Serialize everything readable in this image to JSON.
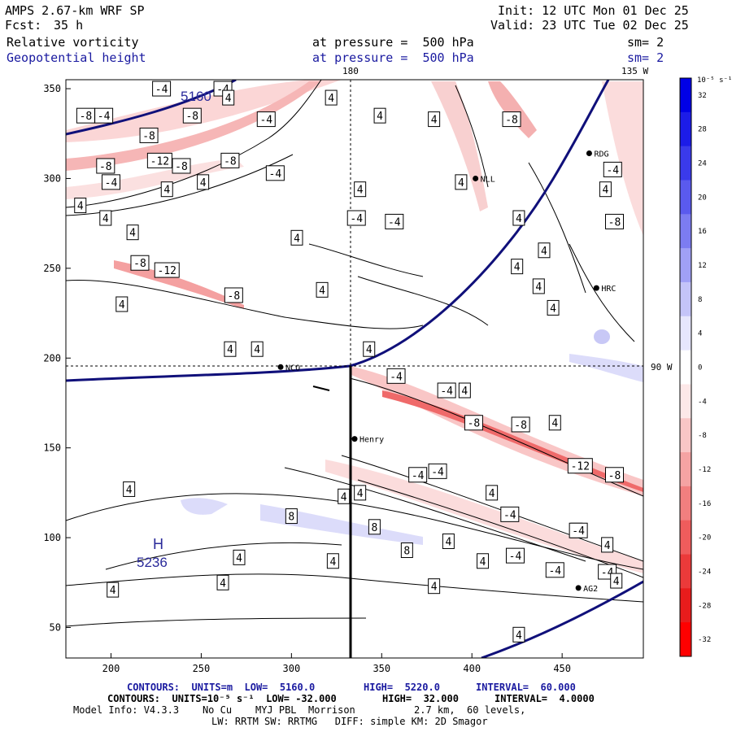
{
  "header": {
    "model": "AMPS 2.67-km WRF SP",
    "fcst_label": "Fcst:",
    "fcst_value": "35 h",
    "field1": "Relative vorticity",
    "field2": "Geopotential height",
    "pressure1": "at pressure =  500 hPa",
    "pressure2": "at pressure =  500 hPa",
    "init": "Init: 12 UTC Mon 01 Dec 25",
    "valid": "Valid: 23 UTC Tue 02 Dec 25",
    "sm1": "sm= 2",
    "sm2": "sm= 2"
  },
  "map": {
    "lon_180": "180",
    "lon_135w": "135 W",
    "lon_90w": "90 W",
    "high_label": "H",
    "high_value": "5236",
    "contour_5160": "5160",
    "stations": [
      "NCO",
      "Henry",
      "RDG",
      "NLL",
      "HRC",
      "AG2"
    ],
    "x_ticks": [
      "200",
      "250",
      "300",
      "350",
      "400",
      "450"
    ],
    "y_ticks": [
      "350",
      "300",
      "250",
      "200",
      "150",
      "100",
      "50"
    ],
    "contour_labels": {
      "neg4": "-4",
      "pos4": "4",
      "neg8": "-8",
      "pos8": "8",
      "neg12": "-12"
    }
  },
  "colorbar": {
    "unit": "10⁻⁵ s⁻¹",
    "ticks": [
      "32",
      "28",
      "24",
      "20",
      "16",
      "12",
      "8",
      "4",
      "0",
      "-4",
      "-8",
      "-12",
      "-16",
      "-20",
      "-24",
      "-28",
      "-32"
    ],
    "colors": [
      "#0000e6",
      "#1c1ce8",
      "#3a3aeb",
      "#5a5aee",
      "#7c7cf1",
      "#a0a0f5",
      "#c4c4f8",
      "#e6e6fc",
      "#ffffff",
      "#fde8e8",
      "#f9c6c6",
      "#f5a3a3",
      "#f27f7f",
      "#ef5c5c",
      "#eb3a3a",
      "#e81c1c",
      "#ff0000"
    ]
  },
  "footer": {
    "line1_a": "CONTOURS:  UNITS=m  LOW=  5160.0",
    "line1_b": "HIGH=  5220.0",
    "line1_c": "INTERVAL=  60.000",
    "line2_a": "CONTOURS:  UNITS=10⁻⁵ s⁻¹  LOW= -32.000",
    "line2_b": "HIGH=  32.000",
    "line2_c": "INTERVAL=  4.0000",
    "line3": "Model Info: V4.3.3    No Cu    MYJ PBL  Morrison          2.7 km,  60 levels,",
    "line4": "LW: RRTM SW: RRTMG   DIFF: simple KM: 2D Smagor"
  }
}
